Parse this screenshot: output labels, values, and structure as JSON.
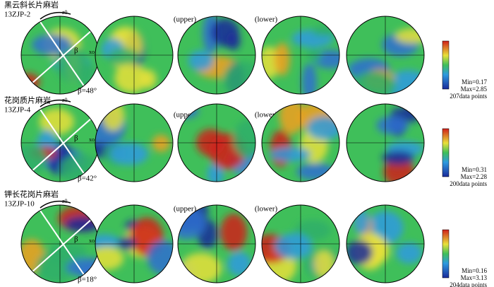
{
  "figure": {
    "rows": [
      {
        "title": "黑云斜长片麻岩",
        "sample": "13ZJP-2",
        "upper": "(upper)",
        "lower": "(lower)",
        "beta": "β=48°",
        "min": "Min=0.17",
        "max": "Max=2.85",
        "points": "207data points",
        "z_label": "z0",
        "x_label": "xo",
        "beta_label": "β"
      },
      {
        "title": "花岗质片麻岩",
        "sample": "13ZJP-4",
        "upper": "(upper)",
        "lower": "(lower)",
        "beta": "β=42°",
        "min": "Min=0.31",
        "max": "Max=2.28",
        "points": "200data points",
        "z_label": "z0",
        "x_label": "xo",
        "beta_label": "β"
      },
      {
        "title": "钾长花岗片麻岩",
        "sample": "13ZJP-10",
        "upper": "(upper)",
        "lower": "(lower)",
        "beta": "β=18°",
        "min": "Min=0.16",
        "max": "Max=3.13",
        "points": "204data points",
        "z_label": "z0",
        "x_label": "xo",
        "beta_label": "β"
      }
    ]
  }
}
